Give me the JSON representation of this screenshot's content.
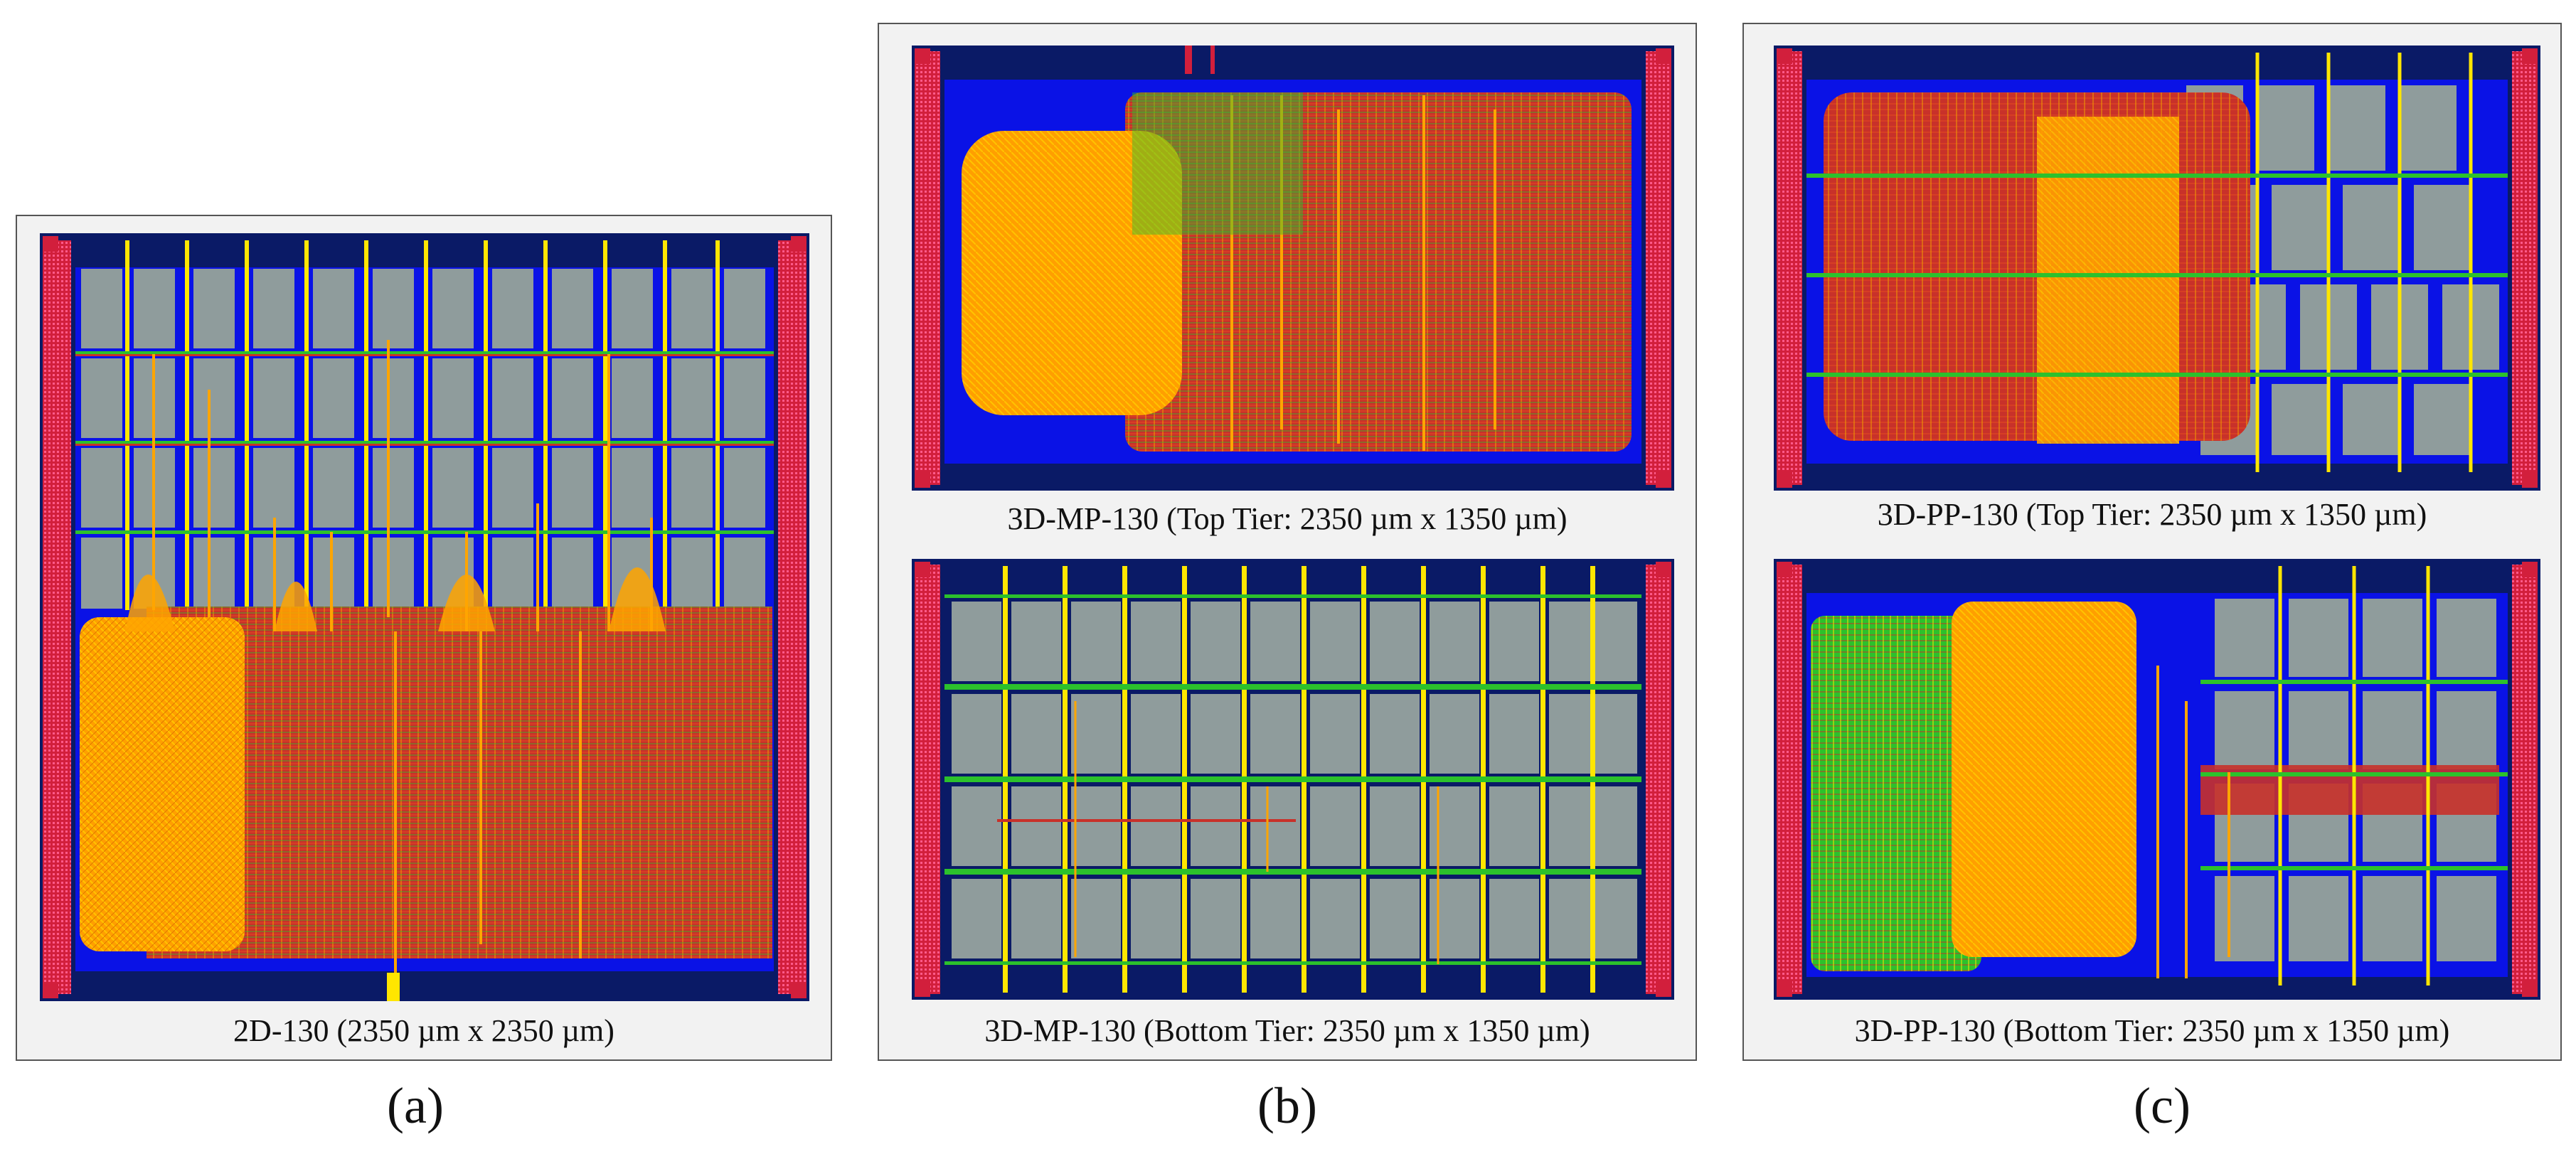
{
  "figure": {
    "panel_labels": [
      "(a)",
      "(b)",
      "(c)"
    ],
    "captions": {
      "a": "2D-130 (2350 µm x 2350 µm)",
      "b_top": "3D-MP-130 (Top Tier: 2350 µm x 1350 µm)",
      "b_bottom": "3D-MP-130 (Bottom Tier: 2350 µm x 1350 µm)",
      "c_top": "3D-PP-130 (Top Tier: 2350 µm x 1350 µm)",
      "c_bottom": "3D-PP-130 (Bottom Tier: 2350 µm x 1350 µm)"
    }
  },
  "colors": {
    "background": "#ffffff",
    "panel": "#f2f2f2",
    "die_navy": "#0a1a66",
    "io_red": "#d21f3c",
    "macro_gray": "#8f9c9c",
    "core_blue": "#0a12e6",
    "cell_red": "#c8312a",
    "route_orange": "#ffa500",
    "route_yellow": "#ffe600",
    "route_green": "#2cc12c",
    "boundary_cyan": "#3fd0d0"
  }
}
